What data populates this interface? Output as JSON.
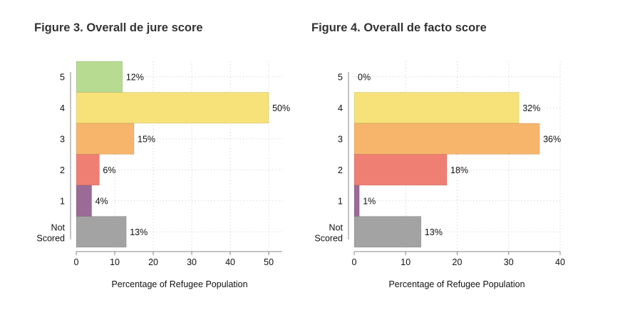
{
  "chart_data": [
    {
      "type": "bar",
      "orientation": "horizontal",
      "title": "Figure 3. Overall de jure score",
      "xlabel": "Percentage of Refugee Population",
      "ylabel": "",
      "categories": [
        "5",
        "4",
        "3",
        "2",
        "1",
        "Not Scored"
      ],
      "values": [
        12,
        50,
        15,
        6,
        4,
        13
      ],
      "data_labels": [
        "12%",
        "50%",
        "15%",
        "6%",
        "4%",
        "13%"
      ],
      "colors": [
        "#b7db90",
        "#f7e27a",
        "#f7b56b",
        "#f07f73",
        "#9c6a97",
        "#a3a3a3"
      ],
      "xlim": [
        0,
        53.5
      ],
      "xticks": [
        0,
        10,
        20,
        30,
        40,
        50
      ],
      "grid": true
    },
    {
      "type": "bar",
      "orientation": "horizontal",
      "title": "Figure 4. Overall de facto score",
      "xlabel": "Percentage of Refugee Population",
      "ylabel": "",
      "categories": [
        "5",
        "4",
        "3",
        "2",
        "1",
        "Not Scored"
      ],
      "values": [
        0,
        32,
        36,
        18,
        1,
        13
      ],
      "data_labels": [
        "0%",
        "32%",
        "36%",
        "18%",
        "1%",
        "13%"
      ],
      "colors": [
        "#b7db90",
        "#f7e27a",
        "#f7b56b",
        "#f07f73",
        "#9c6a97",
        "#a3a3a3"
      ],
      "xlim": [
        0,
        40
      ],
      "xticks": [
        0,
        10,
        20,
        30,
        40
      ],
      "grid": true
    }
  ]
}
